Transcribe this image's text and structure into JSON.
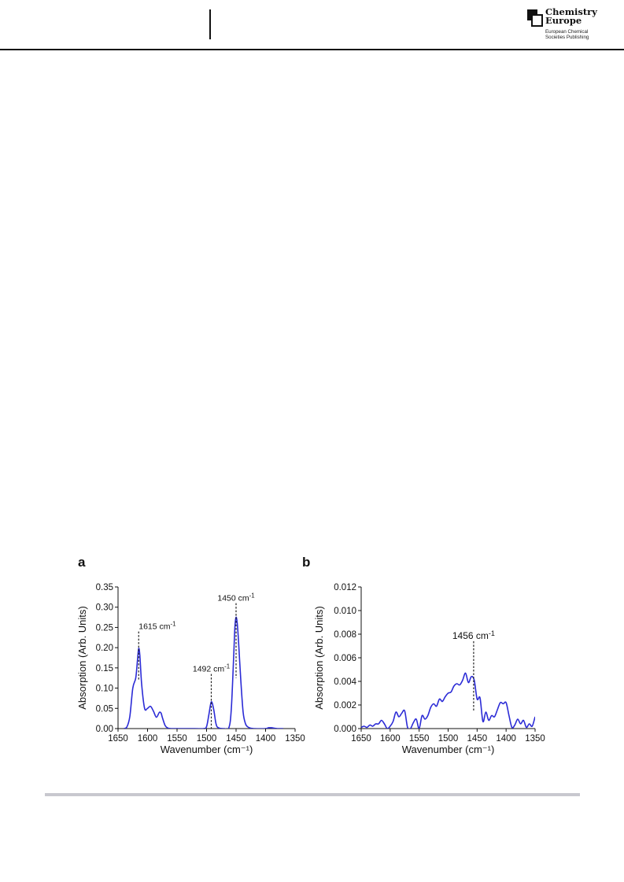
{
  "header": {
    "publisher": {
      "title_line1": "Chemistry",
      "title_line2": "Europe",
      "subtitle_line1": "European Chemical",
      "subtitle_line2": "Societies Publishing"
    }
  },
  "figure": {
    "panels": [
      {
        "letter": "a"
      },
      {
        "letter": "b"
      }
    ]
  },
  "chart_data": [
    {
      "type": "line",
      "panel": "a",
      "xlabel": "Wavenumber (cm⁻¹)",
      "ylabel": "Absorption (Arb. Units)",
      "xlim": [
        1650,
        1350
      ],
      "ylim": [
        0,
        0.35
      ],
      "x_reversed": true,
      "xticks": [
        1650,
        1600,
        1550,
        1500,
        1450,
        1400,
        1350
      ],
      "xtick_labels": [
        "1650",
        "1600",
        "1550",
        "1500",
        "1450",
        "1400",
        "1350"
      ],
      "yticks": [
        0,
        0.05,
        0.1,
        0.15,
        0.2,
        0.25,
        0.3,
        0.35
      ],
      "ytick_labels": [
        "0.00",
        "0.05",
        "0.10",
        "0.15",
        "0.20",
        "0.25",
        "0.30",
        "0.35"
      ],
      "line_color": "#2b2bd6",
      "series": [
        {
          "x": [
            1640,
            1635,
            1630,
            1625,
            1620,
            1617,
            1615,
            1613,
            1610,
            1605,
            1600,
            1595,
            1590,
            1585,
            1580,
            1577,
            1575,
            1570,
            1565,
            1560,
            1550,
            1520,
            1505,
            1500,
            1496,
            1492,
            1488,
            1484,
            1480,
            1470,
            1462,
            1458,
            1454,
            1452,
            1450,
            1448,
            1446,
            1442,
            1438,
            1434,
            1430,
            1425,
            1420,
            1400,
            1395,
            1390,
            1380,
            1370
          ],
          "y": [
            0.0,
            0.004,
            0.03,
            0.1,
            0.125,
            0.17,
            0.198,
            0.18,
            0.11,
            0.05,
            0.05,
            0.055,
            0.043,
            0.028,
            0.04,
            0.038,
            0.028,
            0.007,
            0.001,
            0.0,
            0.0,
            0.0,
            0.0,
            0.005,
            0.035,
            0.066,
            0.048,
            0.012,
            0.002,
            0.0,
            0.003,
            0.05,
            0.18,
            0.25,
            0.275,
            0.26,
            0.22,
            0.12,
            0.04,
            0.012,
            0.004,
            0.001,
            0.0,
            0.0,
            0.002,
            0.002,
            0.0,
            0.0
          ]
        }
      ],
      "annotations": [
        {
          "text": "1615 cm",
          "sup": "-1",
          "x": 1615,
          "y_top": 0.24,
          "y_bottom": 0.12
        },
        {
          "text": "1492 cm",
          "sup": "-1",
          "x": 1492,
          "y_top": 0.135,
          "y_bottom": 0.0
        },
        {
          "text": "1450 cm",
          "sup": "-1",
          "x": 1450,
          "y_top": 0.31,
          "y_bottom": 0.125
        }
      ]
    },
    {
      "type": "line",
      "panel": "b",
      "xlabel": "Wavenumber (cm⁻¹)",
      "ylabel": "Absorption (Arb. Units)",
      "xlim": [
        1650,
        1350
      ],
      "ylim": [
        0,
        0.012
      ],
      "x_reversed": true,
      "xticks": [
        1650,
        1600,
        1550,
        1500,
        1450,
        1400,
        1350
      ],
      "xtick_labels": [
        "1650",
        "1600",
        "1550",
        "1500",
        "1450",
        "1400",
        "1350"
      ],
      "yticks": [
        0,
        0.002,
        0.004,
        0.006,
        0.008,
        0.01,
        0.012
      ],
      "ytick_labels": [
        "0.000",
        "0.002",
        "0.004",
        "0.006",
        "0.008",
        "0.010",
        "0.012"
      ],
      "line_color": "#2b2bd6",
      "series": [
        {
          "x": [
            1650,
            1645,
            1640,
            1635,
            1630,
            1625,
            1620,
            1615,
            1610,
            1605,
            1600,
            1595,
            1590,
            1585,
            1580,
            1575,
            1570,
            1565,
            1560,
            1555,
            1550,
            1545,
            1540,
            1535,
            1530,
            1525,
            1520,
            1515,
            1510,
            1505,
            1500,
            1495,
            1490,
            1485,
            1480,
            1475,
            1470,
            1465,
            1460,
            1455,
            1450,
            1445,
            1440,
            1435,
            1430,
            1425,
            1420,
            1415,
            1410,
            1405,
            1400,
            1395,
            1390,
            1385,
            1380,
            1375,
            1370,
            1365,
            1360,
            1355,
            1350
          ],
          "y": [
            0.0001,
            0.0002,
            0.0001,
            0.0003,
            0.0002,
            0.0004,
            0.0004,
            0.0007,
            0.0004,
            0.0,
            0.0002,
            0.0006,
            0.0014,
            0.001,
            0.0013,
            0.0015,
            0.0001,
            0.0,
            0.0005,
            0.0008,
            0.0,
            0.0011,
            0.0008,
            0.0011,
            0.0018,
            0.0021,
            0.0019,
            0.0025,
            0.0023,
            0.0027,
            0.003,
            0.0031,
            0.0036,
            0.0038,
            0.0037,
            0.0041,
            0.0047,
            0.0039,
            0.0044,
            0.0041,
            0.0025,
            0.0026,
            0.0006,
            0.0014,
            0.0007,
            0.0011,
            0.001,
            0.0016,
            0.0022,
            0.0021,
            0.0022,
            0.0011,
            0.0001,
            0.0003,
            0.0008,
            0.0004,
            0.0007,
            0.0001,
            0.0004,
            0.0002,
            0.001
          ]
        }
      ],
      "annotations": [
        {
          "text": "1456 cm",
          "sup": "-1",
          "x": 1456,
          "y_top": 0.0074,
          "y_bottom": 0.0015
        }
      ]
    }
  ]
}
